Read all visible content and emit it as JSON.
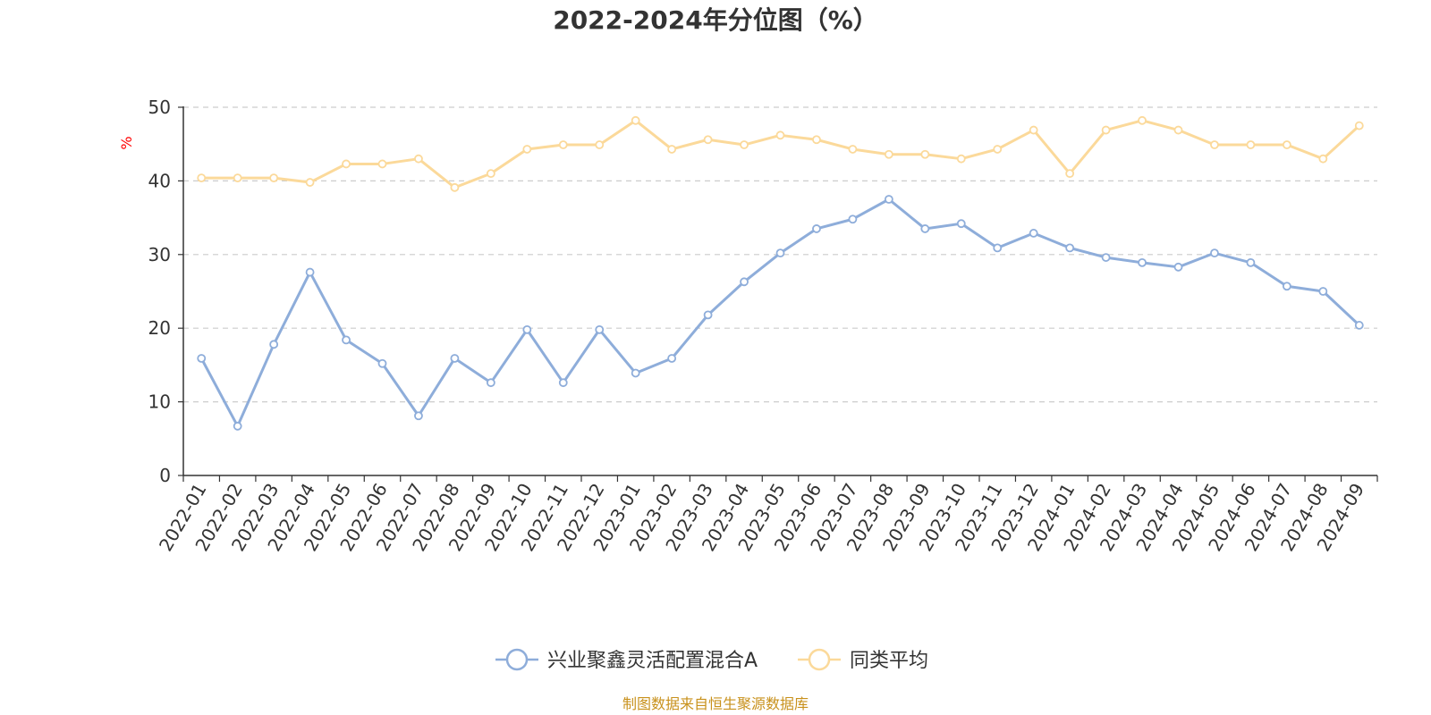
{
  "chart_data": {
    "type": "line",
    "title": "2022-2024年分位图（%）",
    "ylabel": "%",
    "ylim": [
      0,
      50
    ],
    "yticks": [
      0,
      10,
      20,
      30,
      40,
      50
    ],
    "grid": true,
    "legend_position": "bottom",
    "categories": [
      "2022-01",
      "2022-02",
      "2022-03",
      "2022-04",
      "2022-05",
      "2022-06",
      "2022-07",
      "2022-08",
      "2022-09",
      "2022-10",
      "2022-11",
      "2022-12",
      "2023-01",
      "2023-02",
      "2023-03",
      "2023-04",
      "2023-05",
      "2023-06",
      "2023-07",
      "2023-08",
      "2023-09",
      "2023-10",
      "2023-11",
      "2023-12",
      "2024-01",
      "2024-02",
      "2024-03",
      "2024-04",
      "2024-05",
      "2024-06",
      "2024-07",
      "2024-08",
      "2024-09"
    ],
    "series": [
      {
        "name": "兴业聚鑫灵活配置混合A",
        "color": "#8ead db",
        "values": [
          15.9,
          6.7,
          17.8,
          27.6,
          18.4,
          15.2,
          8.1,
          15.9,
          12.6,
          19.8,
          12.6,
          19.8,
          13.9,
          15.9,
          21.8,
          26.3,
          30.2,
          33.5,
          34.8,
          37.5,
          33.5,
          34.2,
          30.9,
          32.9,
          30.9,
          29.6,
          28.9,
          28.3,
          30.2,
          28.9,
          25.7,
          25.0,
          20.4
        ]
      },
      {
        "name": "同类平均",
        "color": "#fbd99a",
        "values": [
          40.4,
          40.4,
          40.4,
          39.8,
          42.3,
          42.3,
          43.0,
          39.1,
          41.0,
          44.3,
          44.9,
          44.9,
          48.2,
          44.3,
          45.6,
          44.9,
          46.2,
          45.6,
          44.3,
          43.6,
          43.6,
          43.0,
          44.3,
          46.9,
          41.0,
          46.9,
          48.2,
          46.9,
          44.9,
          44.9,
          44.9,
          43.0,
          47.5
        ]
      }
    ]
  },
  "footer": {
    "source": "制图数据来自恒生聚源数据库"
  }
}
